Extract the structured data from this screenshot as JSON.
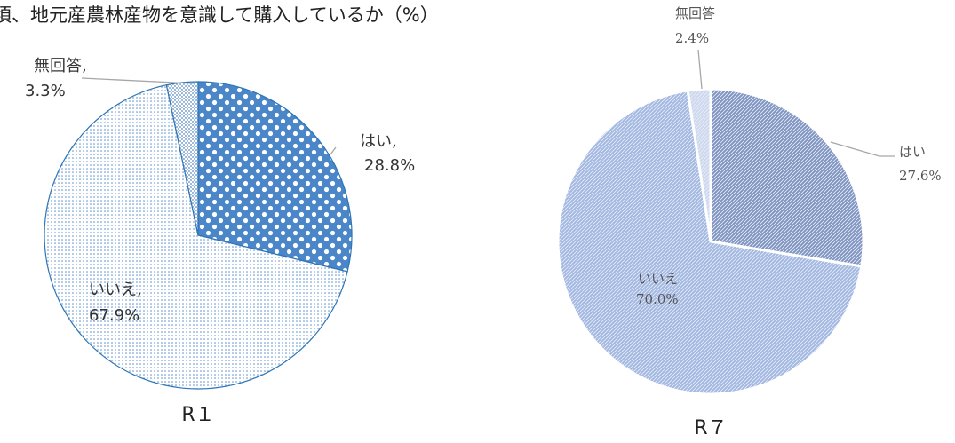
{
  "title": "頃、地元産農林産物を意識して購入しているか（%）",
  "chart_data": [
    {
      "type": "pie",
      "caption": "R１",
      "categories": [
        "はい,",
        "いいえ,",
        "無回答,"
      ],
      "values": [
        28.8,
        67.9,
        3.3
      ],
      "value_labels": [
        "28.8%",
        "67.9%",
        "3.3%"
      ],
      "colors": [
        "#4a86c8",
        "#dfe9f5",
        "#9db9dd"
      ]
    },
    {
      "type": "pie",
      "caption": "R７",
      "categories": [
        "はい",
        "いいえ",
        "無回答"
      ],
      "values": [
        27.6,
        70.0,
        2.4
      ],
      "value_labels": [
        "27.6%",
        "70.0%",
        "2.4%"
      ],
      "colors": [
        "#8094c2",
        "#a3b7e3",
        "#cdd8ef"
      ]
    }
  ]
}
